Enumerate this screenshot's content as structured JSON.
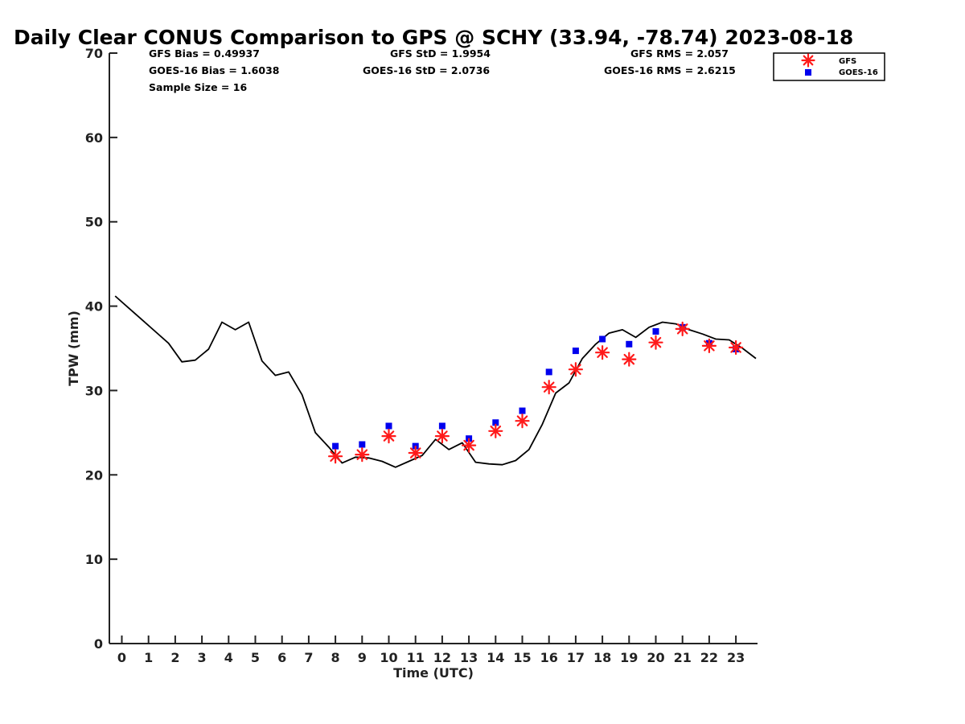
{
  "chart_data": {
    "type": "line",
    "title": "Daily Clear CONUS Comparison to GPS @ SCHY (33.94, -78.74) 2023-08-18",
    "xlabel": "Time (UTC)",
    "ylabel": "TPW (mm)",
    "xlim": [
      -0.5,
      23.75
    ],
    "ylim": [
      0,
      70
    ],
    "x_ticks": [
      0,
      1,
      2,
      3,
      4,
      5,
      6,
      7,
      8,
      9,
      10,
      11,
      12,
      13,
      14,
      15,
      16,
      17,
      18,
      19,
      20,
      21,
      22,
      23
    ],
    "y_ticks": [
      0,
      10,
      20,
      30,
      40,
      50,
      60,
      70
    ],
    "grid": false,
    "legend_position": "top-right",
    "stats": {
      "gfs_bias": "GFS Bias = 0.49937",
      "goes_bias": "GOES-16 Bias = 1.6038",
      "sample_size": "Sample Size = 16",
      "gfs_std": "GFS StD = 1.9954",
      "goes_std": "GOES-16 StD = 2.0736",
      "gfs_rms": "GFS RMS = 2.057",
      "goes_rms": "GOES-16 RMS = 2.6215"
    },
    "gps_line": {
      "x": [
        -0.25,
        0.25,
        0.75,
        1.25,
        1.75,
        2.25,
        2.75,
        3.25,
        3.75,
        4.25,
        4.75,
        5.25,
        5.75,
        6.25,
        6.75,
        7.25,
        7.75,
        8.25,
        8.75,
        9.25,
        9.75,
        10.25,
        10.75,
        11.25,
        11.75,
        12.25,
        12.75,
        13.25,
        13.75,
        14.25,
        14.75,
        15.25,
        15.75,
        16.25,
        16.75,
        17.25,
        17.75,
        18.25,
        18.75,
        19.25,
        19.75,
        20.25,
        20.75,
        21.25,
        21.75,
        22.25,
        22.75,
        23.25,
        23.75
      ],
      "y": [
        41.2,
        39.8,
        38.4,
        37.0,
        35.6,
        33.4,
        33.6,
        34.9,
        38.1,
        37.2,
        38.1,
        33.5,
        31.8,
        32.2,
        29.5,
        25.0,
        23.3,
        21.4,
        22.1,
        22.0,
        21.6,
        20.9,
        21.6,
        22.3,
        24.2,
        23.0,
        23.8,
        21.5,
        21.3,
        21.2,
        21.7,
        23.0,
        26.0,
        29.7,
        30.9,
        33.8,
        35.5,
        36.8,
        37.2,
        36.3,
        37.5,
        38.1,
        37.9,
        37.2,
        36.7,
        36.1,
        36.0,
        35.0,
        33.8
      ]
    },
    "series": [
      {
        "name": "GFS",
        "marker": "asterisk",
        "color": "#ff1a1a",
        "x": [
          8,
          9,
          10,
          11,
          12,
          13,
          14,
          15,
          16,
          17,
          18,
          19,
          20,
          21,
          22,
          23
        ],
        "y": [
          22.2,
          22.4,
          24.6,
          22.6,
          24.6,
          23.5,
          25.2,
          26.4,
          30.4,
          32.5,
          34.5,
          33.7,
          35.7,
          37.3,
          35.3,
          35.1
        ]
      },
      {
        "name": "GOES-16",
        "marker": "square",
        "color": "#0000ee",
        "x": [
          8,
          9,
          10,
          11,
          12,
          13,
          14,
          15,
          16,
          17,
          18,
          19,
          20,
          21,
          22,
          23
        ],
        "y": [
          23.4,
          23.6,
          25.8,
          23.4,
          25.8,
          24.3,
          26.2,
          27.6,
          32.2,
          34.7,
          36.1,
          35.5,
          37.0,
          37.5,
          35.6,
          34.9
        ]
      }
    ]
  }
}
